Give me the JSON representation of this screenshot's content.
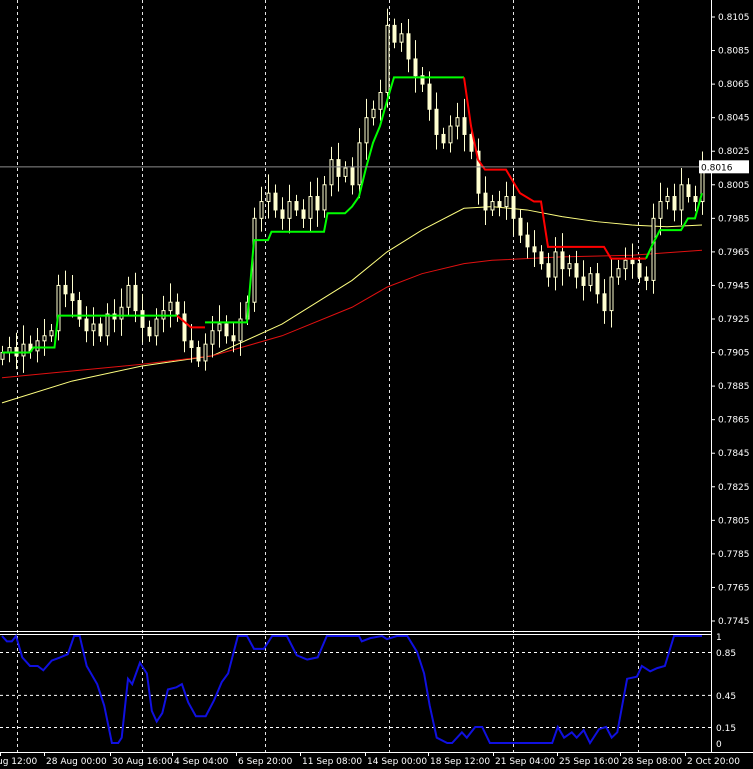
{
  "chart_data": [
    {
      "type": "candlestick",
      "price_axis": {
        "ticks": [
          "0.8105",
          "0.8085",
          "0.8065",
          "0.8045",
          "0.8025",
          "0.8005",
          "0.7985",
          "0.7965",
          "0.7945",
          "0.7925",
          "0.7905",
          "0.7885",
          "0.7865",
          "0.7845",
          "0.7825",
          "0.7805",
          "0.7785",
          "0.7765",
          "0.7745"
        ],
        "ylim": [
          0.774,
          0.8115
        ]
      },
      "current_price": "0.8016",
      "time_axis": {
        "ticks": [
          "ug 12:00",
          "28 Aug 00:00",
          "30 Aug 16:00",
          "4 Sep 04:00",
          "6 Sep 20:00",
          "11 Sep 08:00",
          "14 Sep 00:00",
          "18 Sep 12:00",
          "21 Sep 04:00",
          "25 Sep 16:00",
          "28 Sep 08:00",
          "2 Oct 20:00"
        ]
      },
      "grid": "vertical dashed",
      "closes": [
        0.7905,
        0.7908,
        0.7903,
        0.791,
        0.7906,
        0.7912,
        0.7915,
        0.7918,
        0.7945,
        0.794,
        0.7936,
        0.7925,
        0.7918,
        0.7922,
        0.7915,
        0.7928,
        0.7925,
        0.7932,
        0.7945,
        0.793,
        0.792,
        0.7915,
        0.7925,
        0.793,
        0.7935,
        0.7928,
        0.7912,
        0.7908,
        0.79,
        0.791,
        0.7918,
        0.7922,
        0.7915,
        0.7912,
        0.7925,
        0.7935,
        0.7985,
        0.7995,
        0.8,
        0.799,
        0.7985,
        0.7995,
        0.799,
        0.7985,
        0.7998,
        0.799,
        0.8005,
        0.802,
        0.801,
        0.8015,
        0.8005,
        0.803,
        0.8045,
        0.805,
        0.806,
        0.81,
        0.809,
        0.8095,
        0.808,
        0.807,
        0.8065,
        0.805,
        0.8035,
        0.803,
        0.804,
        0.8045,
        0.8035,
        0.8025,
        0.8,
        0.799,
        0.7995,
        0.7992,
        0.7998,
        0.7985,
        0.7975,
        0.7968,
        0.7965,
        0.7958,
        0.795,
        0.7965,
        0.7955,
        0.7958,
        0.795,
        0.7945,
        0.7952,
        0.794,
        0.793,
        0.795,
        0.7955,
        0.796,
        0.7958,
        0.795,
        0.7948,
        0.7985,
        0.7995,
        0.7998,
        0.799,
        0.8005,
        0.7998,
        0.7995,
        0.8016
      ],
      "trailing_stop": [
        {
          "color": "#00ff00",
          "points": [
            [
              0,
              0.7905
            ],
            [
              4,
              0.7905
            ],
            [
              4.5,
              0.7908
            ],
            [
              7.5,
              0.7908
            ],
            [
              8,
              0.7927
            ],
            [
              25,
              0.7927
            ]
          ]
        },
        {
          "color": "#ff0000",
          "points": [
            [
              25,
              0.7927
            ],
            [
              27,
              0.792
            ],
            [
              29,
              0.792
            ]
          ]
        },
        {
          "color": "#00ff00",
          "points": [
            [
              29,
              0.7923
            ],
            [
              35,
              0.7923
            ],
            [
              36,
              0.7972
            ],
            [
              38,
              0.7972
            ],
            [
              38.5,
              0.7977
            ],
            [
              46,
              0.7977
            ],
            [
              46.5,
              0.7988
            ],
            [
              49,
              0.7988
            ],
            [
              50,
              0.7992
            ],
            [
              51,
              0.7998
            ],
            [
              52,
              0.8015
            ],
            [
              53,
              0.803
            ],
            [
              54,
              0.804
            ],
            [
              55,
              0.8055
            ],
            [
              56,
              0.8069
            ],
            [
              66,
              0.8069
            ]
          ]
        },
        {
          "color": "#ff0000",
          "points": [
            [
              66,
              0.8069
            ],
            [
              67,
              0.804
            ],
            [
              68,
              0.802
            ],
            [
              69,
              0.8014
            ],
            [
              72,
              0.8014
            ],
            [
              74,
              0.8
            ],
            [
              76,
              0.7995
            ],
            [
              77,
              0.7995
            ],
            [
              78,
              0.7968
            ],
            [
              86,
              0.7968
            ],
            [
              87,
              0.7961
            ],
            [
              92,
              0.7961
            ]
          ]
        },
        {
          "color": "#00ff00",
          "points": [
            [
              92,
              0.7961
            ],
            [
              93,
              0.797
            ],
            [
              94,
              0.7978
            ],
            [
              97,
              0.7978
            ],
            [
              98,
              0.7985
            ],
            [
              99,
              0.7985
            ],
            [
              100,
              0.8
            ]
          ]
        }
      ],
      "moving_averages": [
        {
          "color": "#ffff80",
          "points": [
            [
              0,
              0.7875
            ],
            [
              10,
              0.7888
            ],
            [
              20,
              0.7897
            ],
            [
              30,
              0.7903
            ],
            [
              40,
              0.7922
            ],
            [
              50,
              0.7948
            ],
            [
              55,
              0.7965
            ],
            [
              60,
              0.7978
            ],
            [
              66,
              0.7991
            ],
            [
              70,
              0.7992
            ],
            [
              75,
              0.799
            ],
            [
              80,
              0.7986
            ],
            [
              85,
              0.7983
            ],
            [
              90,
              0.7981
            ],
            [
              95,
              0.798
            ],
            [
              100,
              0.7981
            ]
          ]
        },
        {
          "color": "#e01010",
          "points": [
            [
              0,
              0.789
            ],
            [
              10,
              0.7894
            ],
            [
              20,
              0.7898
            ],
            [
              30,
              0.7903
            ],
            [
              40,
              0.7915
            ],
            [
              50,
              0.7932
            ],
            [
              55,
              0.7944
            ],
            [
              60,
              0.7952
            ],
            [
              66,
              0.7958
            ],
            [
              70,
              0.796
            ],
            [
              80,
              0.7962
            ],
            [
              90,
              0.7963
            ],
            [
              100,
              0.7966
            ]
          ]
        }
      ]
    },
    {
      "type": "line",
      "color": "#1010e0",
      "ylim": [
        0,
        1
      ],
      "levels": [
        "0.85",
        "0.45",
        "0.15"
      ],
      "axis_ticks": [
        "1",
        "0.85",
        "0.45",
        "0.15",
        "0"
      ],
      "points": [
        [
          0,
          1
        ],
        [
          0.7,
          0.95
        ],
        [
          1.4,
          0.95
        ],
        [
          2,
          1
        ],
        [
          2.9,
          0.8
        ],
        [
          4,
          0.72
        ],
        [
          5.1,
          0.72
        ],
        [
          5.9,
          0.68
        ],
        [
          7.1,
          0.77
        ],
        [
          8.3,
          0.8
        ],
        [
          9.4,
          0.83
        ],
        [
          10.3,
          1
        ],
        [
          11.1,
          1
        ],
        [
          12.1,
          0.72
        ],
        [
          13.6,
          0.55
        ],
        [
          14.6,
          0.35
        ],
        [
          15.7,
          0
        ],
        [
          16.6,
          0
        ],
        [
          17.1,
          0.05
        ],
        [
          18,
          0.6
        ],
        [
          18.6,
          0.55
        ],
        [
          19.7,
          0.75
        ],
        [
          20.7,
          0.65
        ],
        [
          21.4,
          0.3
        ],
        [
          22.1,
          0.2
        ],
        [
          22.9,
          0.28
        ],
        [
          23.7,
          0.5
        ],
        [
          24.9,
          0.52
        ],
        [
          25.7,
          0.55
        ],
        [
          26.6,
          0.38
        ],
        [
          27.7,
          0.25
        ],
        [
          29.1,
          0.25
        ],
        [
          30.3,
          0.4
        ],
        [
          31.4,
          0.57
        ],
        [
          32.3,
          0.65
        ],
        [
          33.7,
          1
        ],
        [
          35,
          1
        ],
        [
          36,
          0.88
        ],
        [
          37.4,
          0.88
        ],
        [
          38.6,
          1
        ],
        [
          40.7,
          1
        ],
        [
          42.1,
          0.82
        ],
        [
          43.6,
          0.78
        ],
        [
          45.1,
          0.8
        ],
        [
          46.4,
          1
        ],
        [
          51,
          1
        ],
        [
          51.4,
          0.95
        ],
        [
          52.6,
          0.98
        ],
        [
          54.3,
          1
        ],
        [
          55,
          0.97
        ],
        [
          56.4,
          1
        ],
        [
          57.9,
          1
        ],
        [
          59.3,
          0.85
        ],
        [
          60.3,
          0.65
        ],
        [
          61.1,
          0.35
        ],
        [
          62.1,
          0.05
        ],
        [
          63.6,
          0
        ],
        [
          64.3,
          0
        ],
        [
          65.7,
          0.1
        ],
        [
          66.4,
          0.05
        ],
        [
          67.6,
          0.15
        ],
        [
          68.6,
          0.15
        ],
        [
          69.7,
          0
        ],
        [
          78.6,
          0
        ],
        [
          79.4,
          0.15
        ],
        [
          80.3,
          0.05
        ],
        [
          81.4,
          0.1
        ],
        [
          82.1,
          0.05
        ],
        [
          83.1,
          0.12
        ],
        [
          84,
          0
        ],
        [
          85.3,
          0.13
        ],
        [
          86.3,
          0.15
        ],
        [
          87.1,
          0.05
        ],
        [
          87.9,
          0.1
        ],
        [
          89.3,
          0.6
        ],
        [
          90.7,
          0.62
        ],
        [
          91.4,
          0.72
        ],
        [
          92.6,
          0.67
        ],
        [
          93.6,
          0.7
        ],
        [
          94.7,
          0.72
        ],
        [
          96,
          1
        ],
        [
          100,
          1
        ]
      ]
    }
  ]
}
